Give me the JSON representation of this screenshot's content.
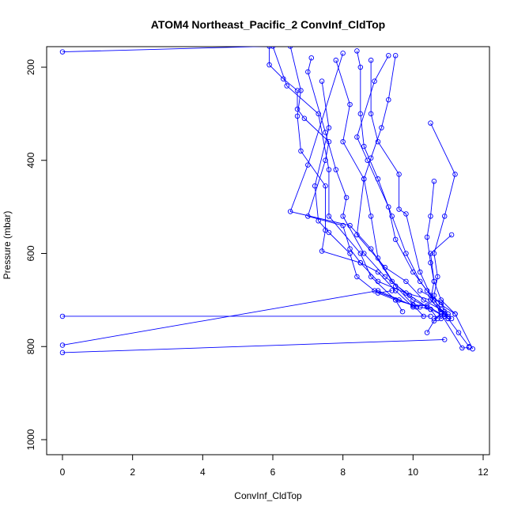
{
  "chart_data": {
    "type": "line",
    "title": "ATOM4 Northeast_Pacific_2 ConvInf_CldTop",
    "xlabel": "ConvInf_CldTop",
    "ylabel": "Pressure (mbar)",
    "xlim": [
      0,
      12
    ],
    "ylim": [
      1000,
      160
    ],
    "y_reversed": true,
    "xticks": [
      0,
      2,
      4,
      6,
      8,
      10,
      12
    ],
    "yticks": [
      200,
      400,
      600,
      800,
      1000
    ],
    "grid": false,
    "legend": "none",
    "color": "#0000ff",
    "marker": "open-circle",
    "series": [
      {
        "points": [
          [
            0,
            167
          ],
          [
            5.9,
            155
          ],
          [
            5.9,
            195
          ],
          [
            6.3,
            225
          ],
          [
            6.7,
            250
          ],
          [
            6.7,
            290
          ],
          [
            6.9,
            310
          ],
          [
            7.6,
            360
          ],
          [
            7.5,
            400
          ],
          [
            7.0,
            520
          ],
          [
            8.0,
            540
          ],
          [
            8.2,
            590
          ],
          [
            8.5,
            620
          ],
          [
            9.0,
            640
          ],
          [
            9.5,
            680
          ],
          [
            10.0,
            715
          ]
        ]
      },
      {
        "points": [
          [
            6.0,
            155
          ],
          [
            6.4,
            240
          ],
          [
            7.3,
            300
          ],
          [
            7.6,
            420
          ],
          [
            7.6,
            520
          ],
          [
            8.5,
            600
          ],
          [
            8.8,
            650
          ],
          [
            9.5,
            700
          ],
          [
            10.2,
            715
          ],
          [
            10.5,
            720
          ],
          [
            10.7,
            740
          ]
        ]
      },
      {
        "points": [
          [
            6.5,
            155
          ],
          [
            6.8,
            250
          ],
          [
            6.7,
            305
          ],
          [
            6.8,
            380
          ],
          [
            7.5,
            455
          ],
          [
            7.5,
            550
          ],
          [
            7.4,
            595
          ],
          [
            8.5,
            620
          ],
          [
            9.0,
            660
          ],
          [
            9.8,
            685
          ],
          [
            10.5,
            700
          ],
          [
            11.0,
            740
          ]
        ]
      },
      {
        "points": [
          [
            7.1,
            180
          ],
          [
            7.0,
            210
          ],
          [
            7.5,
            340
          ],
          [
            7.8,
            420
          ],
          [
            8.1,
            480
          ],
          [
            8.0,
            520
          ],
          [
            8.6,
            600
          ],
          [
            9.2,
            650
          ],
          [
            9.9,
            690
          ],
          [
            10.5,
            720
          ],
          [
            10.9,
            735
          ]
        ]
      },
      {
        "points": [
          [
            7.8,
            185
          ],
          [
            8.2,
            280
          ],
          [
            8.0,
            360
          ],
          [
            8.6,
            440
          ],
          [
            8.4,
            560
          ],
          [
            9.2,
            630
          ],
          [
            9.8,
            660
          ],
          [
            10.3,
            700
          ],
          [
            10.9,
            725
          ],
          [
            10.6,
            740
          ]
        ]
      },
      {
        "points": [
          [
            8.4,
            165
          ],
          [
            8.5,
            200
          ],
          [
            8.5,
            300
          ],
          [
            8.6,
            370
          ],
          [
            9.0,
            440
          ],
          [
            9.4,
            520
          ],
          [
            9.8,
            600
          ],
          [
            10.2,
            660
          ],
          [
            10.6,
            700
          ],
          [
            10.9,
            730
          ]
        ]
      },
      {
        "points": [
          [
            8.8,
            185
          ],
          [
            8.8,
            300
          ],
          [
            9.0,
            360
          ],
          [
            9.6,
            430
          ],
          [
            9.6,
            505
          ],
          [
            9.8,
            515
          ],
          [
            10.2,
            640
          ],
          [
            10.5,
            690
          ],
          [
            10.8,
            720
          ],
          [
            11.1,
            740
          ]
        ]
      },
      {
        "points": [
          [
            9.3,
            175
          ],
          [
            8.9,
            230
          ],
          [
            8.4,
            350
          ],
          [
            8.7,
            400
          ],
          [
            9.3,
            500
          ],
          [
            9.5,
            570
          ],
          [
            10.0,
            640
          ],
          [
            10.4,
            680
          ],
          [
            10.8,
            710
          ],
          [
            11.2,
            730
          ]
        ]
      },
      {
        "points": [
          [
            10.5,
            320
          ],
          [
            11.2,
            430
          ],
          [
            10.9,
            520
          ],
          [
            10.6,
            600
          ],
          [
            10.7,
            650
          ],
          [
            10.6,
            690
          ],
          [
            10.8,
            740
          ],
          [
            11.0,
            730
          ]
        ]
      },
      {
        "points": [
          [
            10.6,
            445
          ],
          [
            10.5,
            520
          ],
          [
            10.4,
            565
          ],
          [
            10.5,
            620
          ],
          [
            10.6,
            660
          ],
          [
            10.5,
            700
          ],
          [
            10.9,
            730
          ],
          [
            11.3,
            770
          ],
          [
            11.6,
            800
          ]
        ]
      },
      {
        "points": [
          [
            11.1,
            560
          ],
          [
            10.5,
            600
          ],
          [
            10.6,
            660
          ],
          [
            10.8,
            700
          ],
          [
            11.2,
            730
          ],
          [
            11.7,
            805
          ]
        ]
      },
      {
        "points": [
          [
            9.5,
            175
          ],
          [
            9.3,
            270
          ],
          [
            9.1,
            330
          ],
          [
            8.8,
            395
          ],
          [
            8.6,
            440
          ],
          [
            8.8,
            520
          ],
          [
            9.0,
            610
          ],
          [
            9.5,
            670
          ],
          [
            10.0,
            710
          ],
          [
            10.3,
            735
          ]
        ]
      },
      {
        "points": [
          [
            7.4,
            230
          ],
          [
            7.6,
            330
          ],
          [
            7.2,
            455
          ],
          [
            7.3,
            530
          ],
          [
            7.6,
            555
          ],
          [
            8.2,
            600
          ],
          [
            8.4,
            650
          ],
          [
            8.9,
            680
          ],
          [
            9.6,
            700
          ],
          [
            10.1,
            715
          ]
        ]
      },
      {
        "points": [
          [
            8.0,
            170
          ],
          [
            7.0,
            410
          ],
          [
            6.5,
            510
          ],
          [
            8.2,
            540
          ],
          [
            8.8,
            590
          ],
          [
            9.4,
            660
          ],
          [
            10.0,
            700
          ],
          [
            10.4,
            715
          ]
        ]
      },
      {
        "points": [
          [
            0,
            735
          ],
          [
            10.5,
            735
          ]
        ]
      },
      {
        "points": [
          [
            0,
            797
          ],
          [
            9.0,
            680
          ],
          [
            10.0,
            712
          ],
          [
            10.4,
            712
          ],
          [
            11.0,
            740
          ]
        ]
      },
      {
        "points": [
          [
            0,
            813
          ],
          [
            10.9,
            785
          ]
        ]
      },
      {
        "points": [
          [
            9.4,
            680
          ],
          [
            9.0,
            685
          ],
          [
            9.5,
            700
          ],
          [
            9.7,
            725
          ]
        ]
      },
      {
        "points": [
          [
            10.2,
            680
          ],
          [
            10.8,
            705
          ],
          [
            11.0,
            735
          ]
        ]
      },
      {
        "points": [
          [
            10.4,
            770
          ],
          [
            10.6,
            745
          ],
          [
            10.8,
            730
          ],
          [
            11.4,
            803
          ],
          [
            11.6,
            802
          ]
        ]
      }
    ]
  }
}
